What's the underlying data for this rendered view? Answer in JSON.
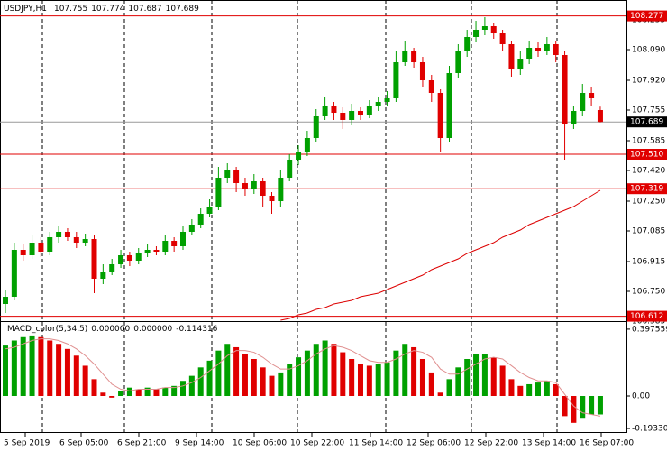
{
  "chart_data": {
    "type": "candlestick",
    "title": "USDJPY,H1",
    "header_values": [
      107.755,
      107.774,
      107.687,
      107.689
    ],
    "ylim": [
      106.58,
      108.365
    ],
    "yticks": [
      108.255,
      {
        "value": 108.09,
        "label": "108.090"
      },
      {
        "value": 107.92,
        "label": "107.920"
      },
      107.755,
      107.585,
      {
        "value": 107.42,
        "label": "107.420"
      },
      {
        "value": 107.25,
        "label": "107.250"
      },
      107.085,
      106.915,
      {
        "value": 106.75,
        "label": "106.750"
      },
      106.585
    ],
    "x_labels": [
      "5 Sep 2019",
      "6 Sep 05:00",
      "6 Sep 21:00",
      "9 Sep 14:00",
      "10 Sep 06:00",
      "10 Sep 22:00",
      "11 Sep 14:00",
      "12 Sep 06:00",
      "12 Sep 22:00",
      "13 Sep 14:00",
      "16 Sep 07:00"
    ],
    "up_color": "#00a000",
    "down_color": "#e00000",
    "open": [
      106.68,
      106.72,
      106.98,
      106.95,
      107.02,
      106.97,
      107.05,
      107.08,
      107.05,
      107.02,
      107.04,
      106.82,
      106.86,
      106.9,
      106.95,
      106.92,
      106.96,
      106.98,
      106.97,
      107.03,
      107.0,
      107.08,
      107.12,
      107.18,
      107.22,
      107.38,
      107.42,
      107.35,
      107.32,
      107.36,
      107.28,
      107.25,
      107.38,
      107.48,
      107.52,
      107.6,
      107.72,
      107.78,
      107.74,
      107.7,
      107.75,
      107.73,
      107.78,
      107.8,
      107.82,
      108.02,
      108.08,
      108.02,
      107.92,
      107.85,
      107.6,
      107.96,
      108.08,
      108.16,
      108.2,
      108.22,
      108.18,
      108.12,
      107.98,
      108.04,
      108.1,
      108.08,
      108.12,
      108.06,
      107.68,
      107.75,
      107.85,
      107.755
    ],
    "high": [
      106.76,
      107.02,
      107.01,
      107.06,
      107.05,
      107.08,
      107.11,
      107.1,
      107.08,
      107.07,
      107.06,
      106.9,
      106.93,
      106.98,
      106.97,
      106.99,
      107.01,
      107.0,
      107.06,
      107.05,
      107.11,
      107.15,
      107.21,
      107.26,
      107.44,
      107.46,
      107.44,
      107.38,
      107.4,
      107.38,
      107.3,
      107.42,
      107.51,
      107.56,
      107.64,
      107.76,
      107.83,
      107.8,
      107.77,
      107.79,
      107.77,
      107.81,
      107.83,
      107.86,
      108.08,
      108.14,
      108.1,
      108.05,
      107.95,
      107.87,
      108.0,
      108.12,
      108.2,
      108.25,
      108.27,
      108.24,
      108.2,
      108.14,
      108.08,
      108.14,
      108.13,
      108.16,
      108.14,
      108.08,
      107.78,
      107.9,
      107.88,
      107.774
    ],
    "low": [
      106.63,
      106.7,
      106.92,
      106.93,
      106.94,
      106.95,
      107.02,
      107.03,
      106.99,
      107.0,
      106.74,
      106.79,
      106.84,
      106.88,
      106.89,
      106.9,
      106.94,
      106.95,
      106.95,
      106.97,
      106.98,
      107.06,
      107.1,
      107.16,
      107.2,
      107.35,
      107.3,
      107.28,
      107.29,
      107.22,
      107.18,
      107.22,
      107.36,
      107.45,
      107.5,
      107.58,
      107.7,
      107.7,
      107.65,
      107.67,
      107.7,
      107.71,
      107.75,
      107.78,
      107.8,
      108.0,
      107.99,
      107.88,
      107.8,
      107.52,
      107.58,
      107.93,
      108.05,
      108.13,
      108.17,
      108.15,
      108.08,
      107.94,
      107.95,
      108.01,
      108.05,
      108.06,
      108.02,
      107.48,
      107.65,
      107.72,
      107.78,
      107.687
    ],
    "close": [
      106.72,
      106.98,
      106.95,
      107.02,
      106.97,
      107.05,
      107.08,
      107.05,
      107.02,
      107.04,
      106.82,
      106.86,
      106.9,
      106.95,
      106.92,
      106.96,
      106.98,
      106.97,
      107.03,
      107.0,
      107.08,
      107.12,
      107.18,
      107.22,
      107.38,
      107.42,
      107.35,
      107.32,
      107.36,
      107.28,
      107.25,
      107.38,
      107.48,
      107.52,
      107.6,
      107.72,
      107.78,
      107.74,
      107.7,
      107.75,
      107.73,
      107.78,
      107.8,
      107.82,
      108.02,
      108.08,
      108.02,
      107.92,
      107.85,
      107.6,
      107.96,
      108.08,
      108.16,
      108.2,
      108.22,
      108.18,
      108.12,
      107.98,
      108.04,
      108.1,
      108.08,
      108.12,
      108.06,
      107.68,
      107.75,
      107.85,
      107.82,
      107.689
    ],
    "moving_average": {
      "color": "#dd0000",
      "values": [
        null,
        null,
        null,
        null,
        null,
        null,
        null,
        null,
        null,
        null,
        null,
        null,
        null,
        null,
        null,
        null,
        null,
        null,
        null,
        null,
        null,
        null,
        null,
        null,
        null,
        null,
        null,
        null,
        null,
        null,
        null,
        106.59,
        106.6,
        106.62,
        106.63,
        106.65,
        106.66,
        106.68,
        106.69,
        106.7,
        106.72,
        106.73,
        106.74,
        106.76,
        106.78,
        106.8,
        106.82,
        106.84,
        106.87,
        106.89,
        106.91,
        106.93,
        106.96,
        106.98,
        107.0,
        107.02,
        107.05,
        107.07,
        107.09,
        107.12,
        107.14,
        107.16,
        107.18,
        107.2,
        107.22,
        107.25,
        107.28,
        107.31
      ]
    },
    "levels": [
      {
        "value": 108.277,
        "label": "108.277"
      },
      {
        "value": 107.51,
        "label": "107.510"
      },
      {
        "value": 107.319,
        "label": "107.319"
      },
      {
        "value": 106.612,
        "label": "106.612"
      }
    ],
    "level_color": "#e00000",
    "current_price": 107.689,
    "macd": {
      "title": "MACD_color(5,34,5)",
      "header_values": [
        "0.000000",
        "0.000000",
        "-0.114316"
      ],
      "ylim": [
        -0.22,
        0.44
      ],
      "yticks": [
        0.397559,
        {
          "value": 0,
          "label": "0.00"
        },
        -0.193306
      ],
      "signal_color": "#e09090",
      "values": [
        0.3,
        0.33,
        0.35,
        0.36,
        0.35,
        0.33,
        0.31,
        0.28,
        0.24,
        0.18,
        0.1,
        0.02,
        -0.01,
        0.03,
        0.05,
        0.04,
        0.05,
        0.04,
        0.05,
        0.06,
        0.09,
        0.12,
        0.17,
        0.21,
        0.27,
        0.31,
        0.29,
        0.25,
        0.22,
        0.17,
        0.12,
        0.14,
        0.19,
        0.23,
        0.27,
        0.31,
        0.33,
        0.31,
        0.26,
        0.22,
        0.19,
        0.18,
        0.19,
        0.2,
        0.27,
        0.31,
        0.29,
        0.22,
        0.14,
        0.02,
        0.1,
        0.17,
        0.22,
        0.25,
        0.25,
        0.23,
        0.18,
        0.1,
        0.06,
        0.07,
        0.08,
        0.09,
        0.07,
        -0.12,
        -0.16,
        -0.13,
        -0.11,
        -0.11
      ],
      "signal": [
        0.28,
        0.29,
        0.31,
        0.33,
        0.34,
        0.34,
        0.33,
        0.31,
        0.28,
        0.24,
        0.19,
        0.13,
        0.07,
        0.04,
        0.03,
        0.04,
        0.04,
        0.04,
        0.05,
        0.05,
        0.06,
        0.08,
        0.11,
        0.15,
        0.19,
        0.24,
        0.27,
        0.27,
        0.26,
        0.23,
        0.19,
        0.16,
        0.16,
        0.18,
        0.21,
        0.25,
        0.28,
        0.3,
        0.29,
        0.27,
        0.24,
        0.21,
        0.2,
        0.2,
        0.22,
        0.25,
        0.27,
        0.26,
        0.23,
        0.16,
        0.13,
        0.13,
        0.16,
        0.19,
        0.22,
        0.23,
        0.22,
        0.18,
        0.14,
        0.11,
        0.09,
        0.09,
        0.08,
        0.01,
        -0.06,
        -0.1,
        -0.11,
        -0.12
      ]
    }
  }
}
